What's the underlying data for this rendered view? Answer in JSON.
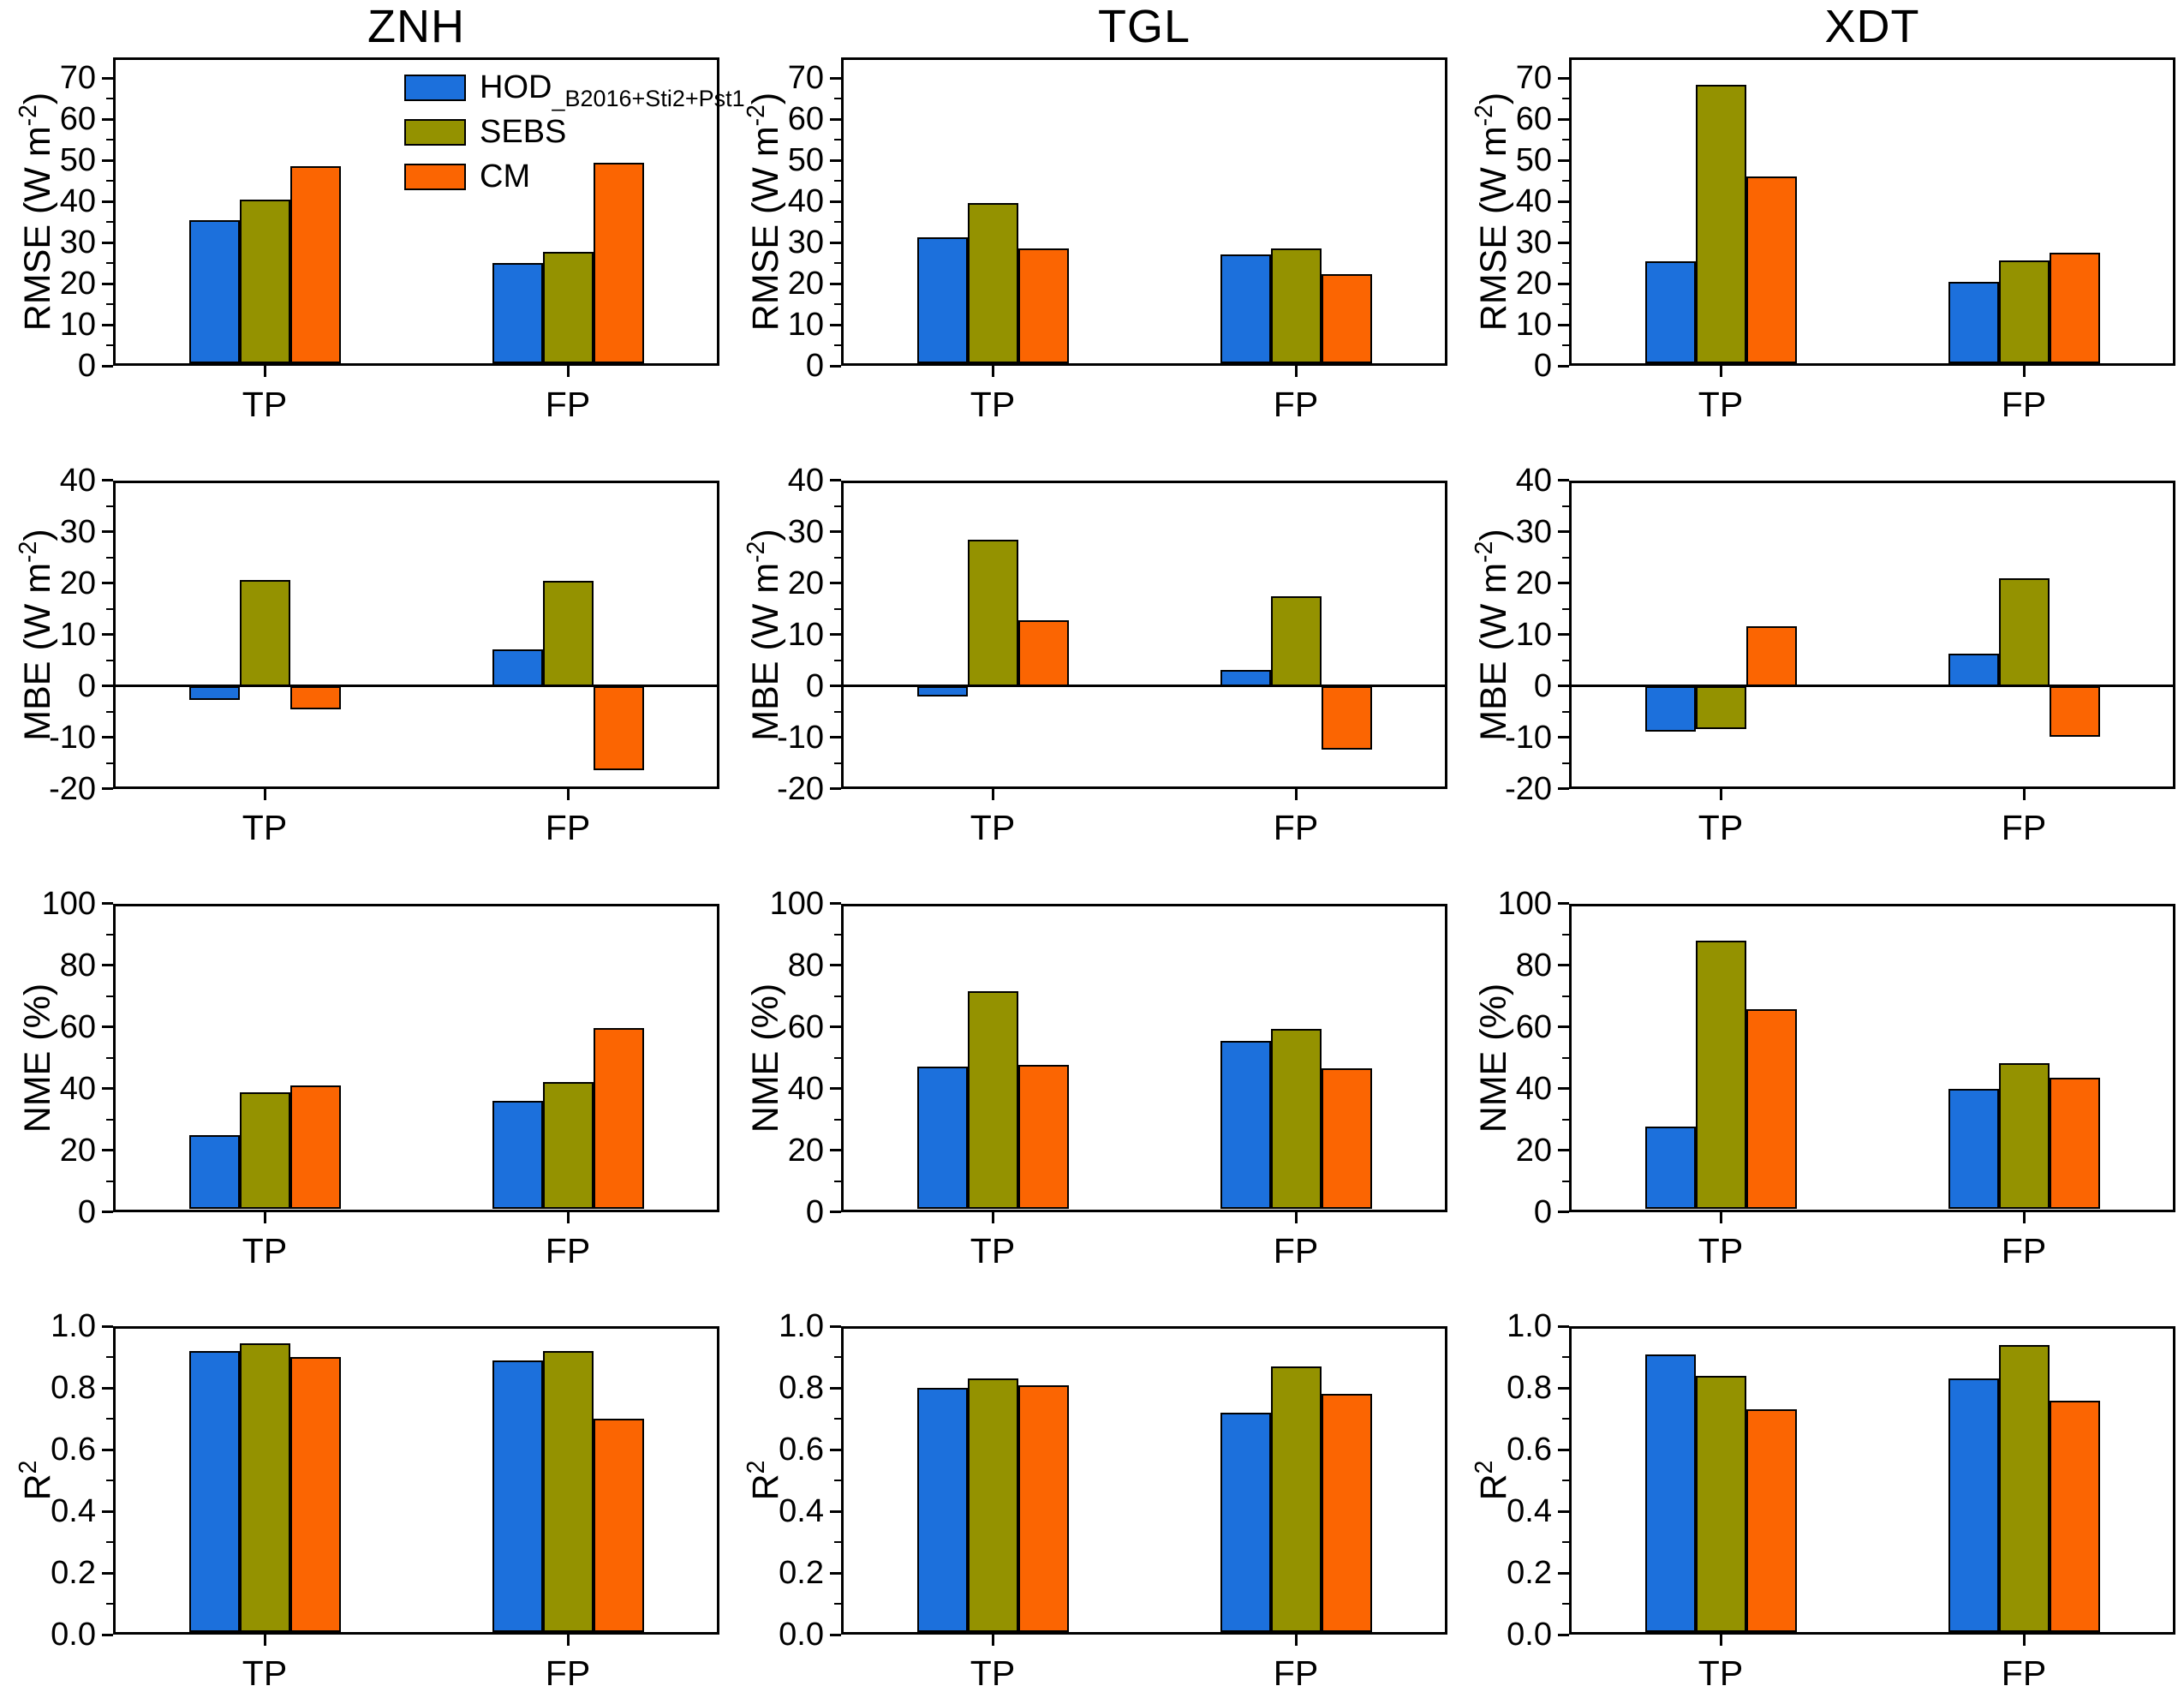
{
  "legend": {
    "items": [
      {
        "key": "HOD",
        "main": "HOD",
        "sub": "_B2016+Sti2+Pst1",
        "color": "#1c70dc"
      },
      {
        "key": "SEBS",
        "main": "SEBS",
        "sub": "",
        "color": "#949200"
      },
      {
        "key": "CM",
        "main": "CM",
        "sub": "",
        "color": "#fb6502"
      }
    ]
  },
  "chart_data": {
    "type": "bar",
    "columns": [
      "ZNH",
      "TGL",
      "XDT"
    ],
    "groups": [
      "TP",
      "FP"
    ],
    "series": [
      "HOD_B2016+Sti2+Pst1",
      "SEBS",
      "CM"
    ],
    "series_keys": [
      "HOD",
      "SEBS",
      "CM"
    ],
    "series_colors": [
      "#1c70dc",
      "#949200",
      "#fb6502"
    ],
    "grid": "off",
    "legend_position": "top-right of first panel",
    "rows": [
      {
        "metric": "RMSE",
        "ylabel": "RMSE (W m⁻²)",
        "ylabel_pre": "RMSE (W m",
        "ylabel_sup": "-2",
        "ylabel_post": ")",
        "ylim": [
          0,
          75
        ],
        "yticks": [
          0,
          10,
          20,
          30,
          40,
          50,
          60,
          70
        ],
        "ytick_labels": [
          "0",
          "10",
          "20",
          "30",
          "40",
          "50",
          "60",
          "70"
        ],
        "minor_step": 5,
        "zero_line": false,
        "values": {
          "ZNH": {
            "TP": [
              35.5,
              40.4,
              48.6
            ],
            "FP": [
              25.0,
              27.8,
              49.3
            ]
          },
          "TGL": {
            "TP": [
              31.2,
              39.6,
              28.5
            ],
            "FP": [
              27.1,
              28.5,
              22.2
            ]
          },
          "XDT": {
            "TP": [
              25.4,
              68.3,
              46.1
            ],
            "FP": [
              20.4,
              25.6,
              27.4
            ]
          }
        }
      },
      {
        "metric": "MBE",
        "ylabel": "MBE (W m⁻²)",
        "ylabel_pre": "MBE (W m",
        "ylabel_sup": "-2",
        "ylabel_post": ")",
        "ylim": [
          -20,
          40
        ],
        "yticks": [
          -20,
          -10,
          0,
          10,
          20,
          30,
          40
        ],
        "ytick_labels": [
          "-20",
          "-10",
          "0",
          "10",
          "20",
          "30",
          "40"
        ],
        "minor_step": 5,
        "zero_line": true,
        "values": {
          "ZNH": {
            "TP": [
              -2.7,
              20.7,
              -4.6
            ],
            "FP": [
              7.2,
              20.4,
              -16.3
            ]
          },
          "TGL": {
            "TP": [
              -2.0,
              28.5,
              12.8
            ],
            "FP": [
              3.1,
              17.4,
              -12.3
            ]
          },
          "XDT": {
            "TP": [
              -8.8,
              -8.3,
              11.6
            ],
            "FP": [
              6.3,
              20.9,
              -9.9
            ]
          }
        }
      },
      {
        "metric": "NME",
        "ylabel": "NME (%)",
        "ylabel_pre": "NME (%)",
        "ylabel_sup": "",
        "ylabel_post": "",
        "ylim": [
          0,
          100
        ],
        "yticks": [
          0,
          20,
          40,
          60,
          80,
          100
        ],
        "ytick_labels": [
          "0",
          "20",
          "40",
          "60",
          "80",
          "100"
        ],
        "minor_step": 10,
        "zero_line": false,
        "values": {
          "ZNH": {
            "TP": [
              24.9,
              38.8,
              41.0
            ],
            "FP": [
              36.1,
              42.1,
              59.6
            ]
          },
          "TGL": {
            "TP": [
              47.0,
              71.5,
              47.6
            ],
            "FP": [
              55.4,
              59.4,
              46.4
            ]
          },
          "XDT": {
            "TP": [
              27.6,
              88.0,
              65.7
            ],
            "FP": [
              39.9,
              48.1,
              43.4
            ]
          }
        }
      },
      {
        "metric": "R2",
        "ylabel": "R²",
        "ylabel_pre": "R",
        "ylabel_sup": "2",
        "ylabel_post": "",
        "ylim": [
          0,
          1.0
        ],
        "yticks": [
          0,
          0.2,
          0.4,
          0.6,
          0.8,
          1.0
        ],
        "ytick_labels": [
          "0.0",
          "0.2",
          "0.4",
          "0.6",
          "0.8",
          "1.0"
        ],
        "minor_step": 0.1,
        "zero_line": false,
        "values": {
          "ZNH": {
            "TP": [
              0.92,
              0.945,
              0.9
            ],
            "FP": [
              0.89,
              0.92,
              0.7
            ]
          },
          "TGL": {
            "TP": [
              0.8,
              0.83,
              0.81
            ],
            "FP": [
              0.72,
              0.87,
              0.78
            ]
          },
          "XDT": {
            "TP": [
              0.91,
              0.84,
              0.73
            ],
            "FP": [
              0.83,
              0.94,
              0.76
            ]
          }
        }
      }
    ]
  }
}
